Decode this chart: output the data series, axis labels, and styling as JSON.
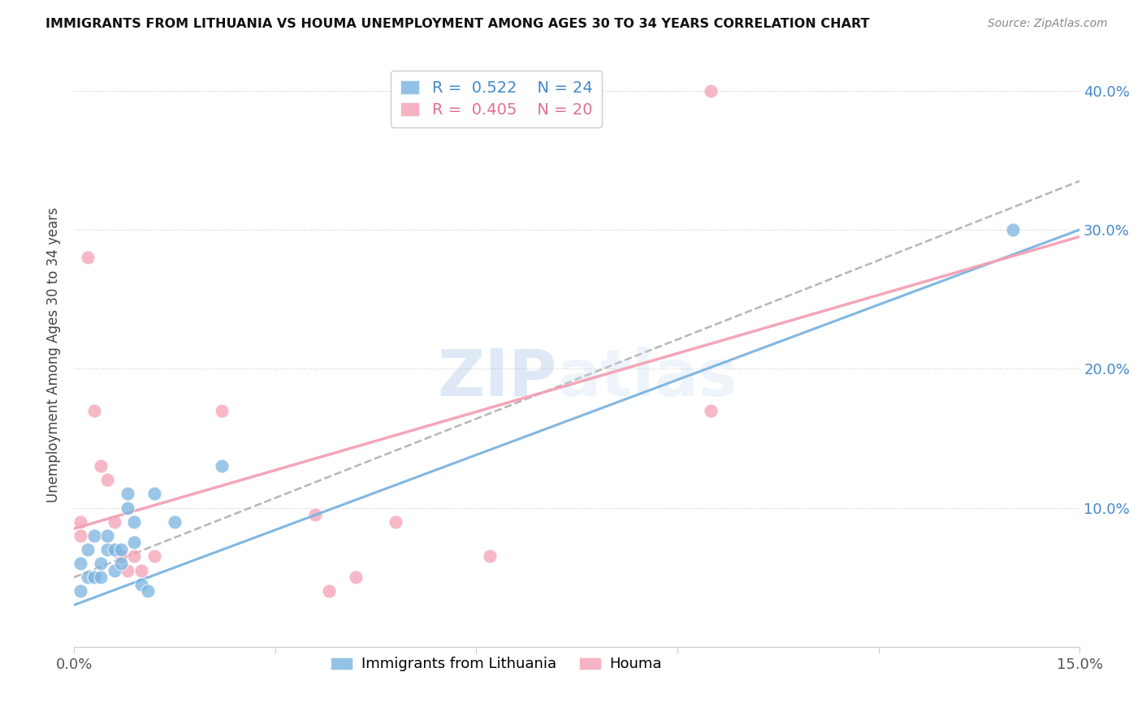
{
  "title": "IMMIGRANTS FROM LITHUANIA VS HOUMA UNEMPLOYMENT AMONG AGES 30 TO 34 YEARS CORRELATION CHART",
  "source": "Source: ZipAtlas.com",
  "ylabel": "Unemployment Among Ages 30 to 34 years",
  "xlim": [
    0.0,
    0.15
  ],
  "ylim": [
    0.0,
    0.42
  ],
  "blue_color": "#7ab3e0",
  "pink_color": "#f4a0b5",
  "blue_R": 0.522,
  "blue_N": 24,
  "pink_R": 0.405,
  "pink_N": 20,
  "watermark_zip": "ZIP",
  "watermark_atlas": "atlas",
  "legend_label_blue": "Immigrants from Lithuania",
  "legend_label_pink": "Houma",
  "blue_x": [
    0.001,
    0.001,
    0.002,
    0.002,
    0.003,
    0.003,
    0.004,
    0.004,
    0.005,
    0.005,
    0.006,
    0.006,
    0.007,
    0.007,
    0.008,
    0.008,
    0.009,
    0.009,
    0.01,
    0.011,
    0.012,
    0.015,
    0.022,
    0.14
  ],
  "blue_y": [
    0.04,
    0.06,
    0.05,
    0.07,
    0.05,
    0.08,
    0.05,
    0.06,
    0.07,
    0.08,
    0.055,
    0.07,
    0.06,
    0.07,
    0.1,
    0.11,
    0.075,
    0.09,
    0.045,
    0.04,
    0.11,
    0.09,
    0.13,
    0.3
  ],
  "pink_x": [
    0.001,
    0.001,
    0.002,
    0.003,
    0.004,
    0.005,
    0.006,
    0.007,
    0.008,
    0.009,
    0.01,
    0.012,
    0.022,
    0.036,
    0.038,
    0.042,
    0.048,
    0.062,
    0.095,
    0.095
  ],
  "pink_y": [
    0.09,
    0.08,
    0.28,
    0.17,
    0.13,
    0.12,
    0.09,
    0.065,
    0.055,
    0.065,
    0.055,
    0.065,
    0.17,
    0.095,
    0.04,
    0.05,
    0.09,
    0.065,
    0.17,
    0.4
  ],
  "blue_trend_x0": 0.0,
  "blue_trend_x1": 0.15,
  "blue_trend_y0": 0.03,
  "blue_trend_y1": 0.3,
  "gray_trend_y0": 0.05,
  "gray_trend_y1": 0.335,
  "pink_trend_y0": 0.085,
  "pink_trend_y1": 0.295,
  "xtick_positions": [
    0.0,
    0.03,
    0.06,
    0.09,
    0.12,
    0.15
  ],
  "ytick_positions": [
    0.0,
    0.1,
    0.2,
    0.3,
    0.4
  ],
  "ytick_labels_right": [
    "",
    "10.0%",
    "20.0%",
    "30.0%",
    "40.0%"
  ]
}
